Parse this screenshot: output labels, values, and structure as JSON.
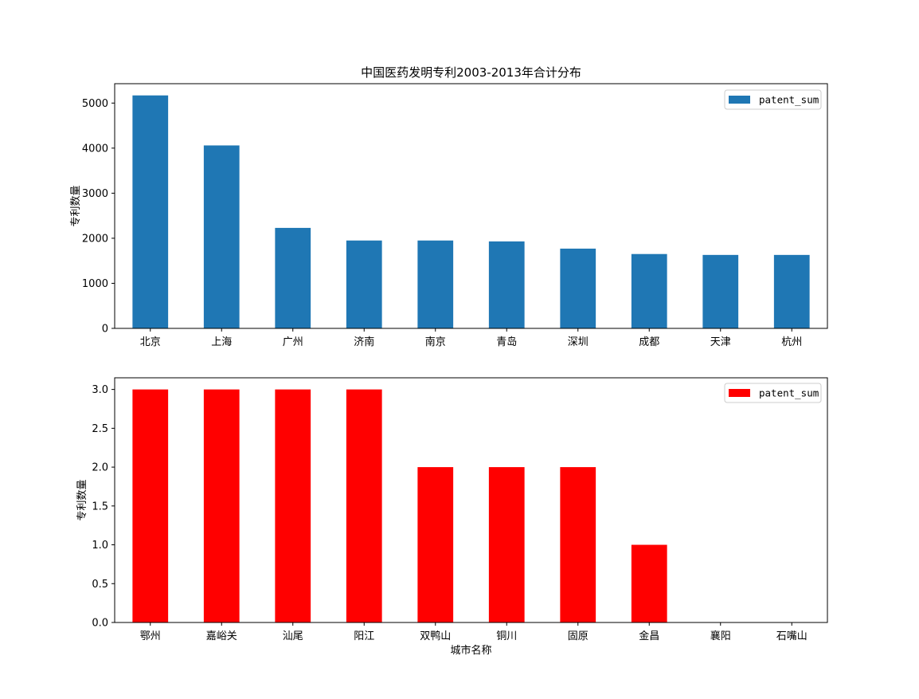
{
  "chart_data": [
    {
      "type": "bar",
      "title": "中国医药发明专利2003-2013年合计分布",
      "xlabel": "",
      "ylabel": "专利数量",
      "categories": [
        "北京",
        "上海",
        "广州",
        "济南",
        "南京",
        "青岛",
        "深圳",
        "成都",
        "天津",
        "杭州"
      ],
      "series": [
        {
          "name": "patent_sum",
          "values": [
            5170,
            4060,
            2230,
            1950,
            1950,
            1930,
            1770,
            1650,
            1630,
            1630
          ],
          "color": "#1f77b4"
        }
      ],
      "ylim": [
        0,
        5430
      ],
      "yticks": [
        0,
        1000,
        2000,
        3000,
        4000,
        5000
      ],
      "ytick_labels": [
        "0",
        "1000",
        "2000",
        "3000",
        "4000",
        "5000"
      ],
      "legend": "top-right",
      "grid": false
    },
    {
      "type": "bar",
      "title": "",
      "xlabel": "城市名称",
      "ylabel": "专利数量",
      "categories": [
        "鄂州",
        "嘉峪关",
        "汕尾",
        "阳江",
        "双鸭山",
        "铜川",
        "固原",
        "金昌",
        "襄阳",
        "石嘴山"
      ],
      "series": [
        {
          "name": "patent_sum",
          "values": [
            3,
            3,
            3,
            3,
            2,
            2,
            2,
            1,
            0,
            0
          ],
          "color": "#ff0000"
        }
      ],
      "ylim": [
        0,
        3.15
      ],
      "yticks": [
        0,
        0.5,
        1,
        1.5,
        2,
        2.5,
        3
      ],
      "ytick_labels": [
        "0.0",
        "0.5",
        "1.0",
        "1.5",
        "2.0",
        "2.5",
        "3.0"
      ],
      "legend": "top-right",
      "grid": false
    }
  ]
}
